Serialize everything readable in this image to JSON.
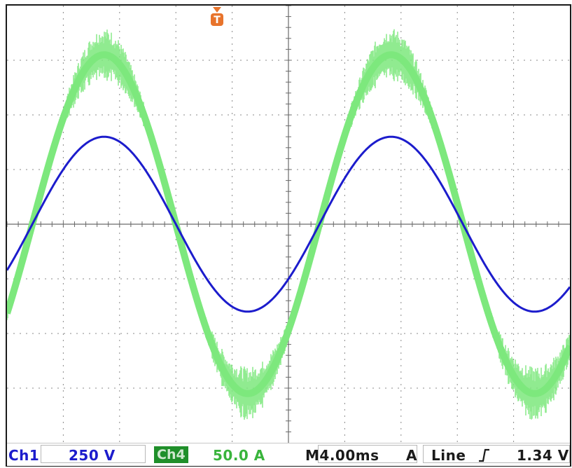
{
  "scope": {
    "trigger_marker": "T",
    "trigger_marker_color": "#e8742c",
    "divisions": {
      "horizontal": 10,
      "vertical": 8
    },
    "grid_color": "#8a8a8a"
  },
  "traces": [
    {
      "id": "ch1",
      "color": "#1c1ccc",
      "amplitude_div": 1.6,
      "period_div": 5.1,
      "phase_div": 0.45,
      "noise": 0.0
    },
    {
      "id": "ch4",
      "color": "#7de87d",
      "amplitude_div": 3.1,
      "period_div": 5.1,
      "phase_div": 0.45,
      "noise": 0.35
    }
  ],
  "status": {
    "ch1_label": "Ch1",
    "ch1_scale": "250 V",
    "ch4_label": "Ch4",
    "ch4_scale": "50.0 A",
    "timebase": "M4.00ms",
    "trigger_mode": "A",
    "trigger_source": "Line",
    "trigger_slope_icon": "rising-edge",
    "trigger_level": "1.34 V"
  }
}
